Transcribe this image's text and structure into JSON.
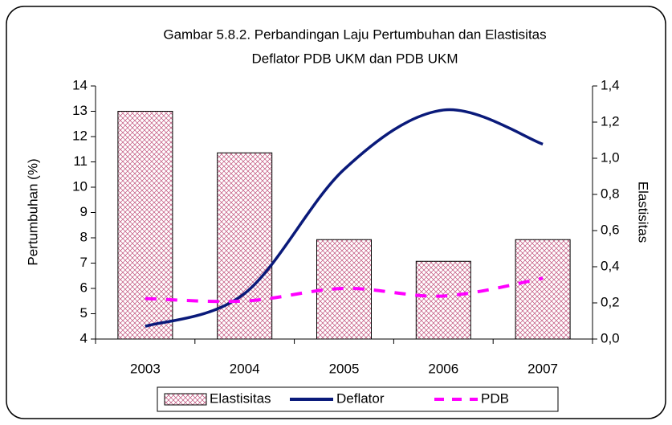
{
  "chart_data": {
    "type": "bar_line",
    "title": [
      "Gambar 5.8.2. Perbandingan Laju Pertumbuhan dan Elastisitas",
      "Deflator PDB UKM dan PDB UKM"
    ],
    "ylabel": "Pertumbuhan (%)",
    "y2label": "Elastisitas",
    "categories": [
      "2003",
      "2004",
      "2005",
      "2006",
      "2007"
    ],
    "ylim": [
      4,
      14
    ],
    "yticks": [
      4,
      5,
      6,
      7,
      8,
      9,
      10,
      11,
      12,
      13,
      14
    ],
    "y2lim": [
      0,
      1.4
    ],
    "y2ticks": [
      {
        "value": 0,
        "label": "0,0"
      },
      {
        "value": 0.2,
        "label": "0,2"
      },
      {
        "value": 0.4,
        "label": "0,4"
      },
      {
        "value": 0.6,
        "label": "0,6"
      },
      {
        "value": 0.8,
        "label": "0,8"
      },
      {
        "value": 1.0,
        "label": "1,0"
      },
      {
        "value": 1.2,
        "label": "1,2"
      },
      {
        "value": 1.4,
        "label": "1,4"
      }
    ],
    "series": [
      {
        "name": "Elastisitas",
        "type": "bar",
        "axis": "y2",
        "color": "#c0507a",
        "values": [
          1.26,
          1.03,
          0.55,
          0.43,
          0.55
        ]
      },
      {
        "name": "Deflator",
        "type": "line",
        "color": "#0a1a7a",
        "values": [
          4.5,
          5.8,
          10.7,
          13.05,
          11.7
        ]
      },
      {
        "name": "PDB",
        "type": "dashed",
        "color": "#ff00ff",
        "values": [
          5.6,
          5.5,
          6.0,
          5.7,
          6.4
        ]
      }
    ],
    "grid": false,
    "legend": "bottom"
  }
}
